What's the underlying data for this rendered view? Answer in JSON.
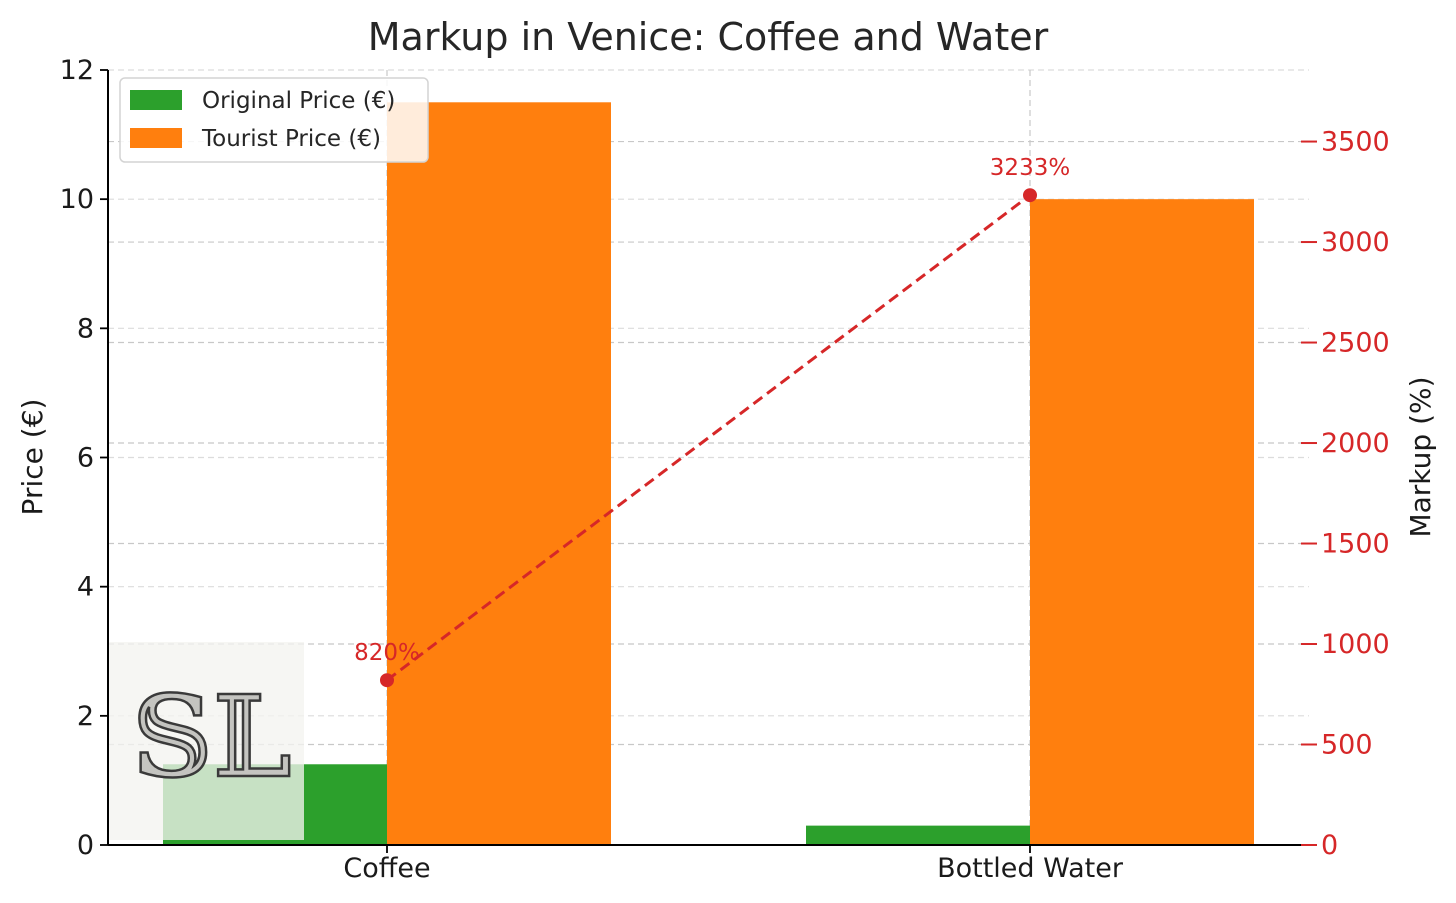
{
  "chart_data": {
    "type": "bar",
    "title": "Markup in Venice: Coffee and Water",
    "categories": [
      "Coffee",
      "Bottled Water"
    ],
    "series": [
      {
        "name": "Original Price (€)",
        "values": [
          1.25,
          0.3
        ],
        "color": "#2ca02c",
        "axis": "left"
      },
      {
        "name": "Tourist Price (€)",
        "values": [
          11.5,
          10.0
        ],
        "color": "#ff7f0e",
        "axis": "left"
      }
    ],
    "line_series": {
      "type": "line",
      "values": [
        820,
        3233
      ],
      "labels": [
        "820%",
        "3233%"
      ],
      "color": "#d62728",
      "style": "dashed",
      "marker": "circle",
      "axis": "right"
    },
    "ylabel": "Price (€)",
    "ylabel_right": "Markup (%)",
    "ylim": [
      0,
      12
    ],
    "yticks": [
      0,
      2,
      4,
      6,
      8,
      10,
      12
    ],
    "ylim_right": [
      0,
      3856
    ],
    "yticks_right": [
      0,
      500,
      1000,
      1500,
      2000,
      2500,
      3000,
      3500
    ],
    "right_axis_color": "#d62728",
    "grid": true,
    "legend_position": "upper-left"
  },
  "watermark": {
    "text": "SL",
    "kind": "logo"
  }
}
